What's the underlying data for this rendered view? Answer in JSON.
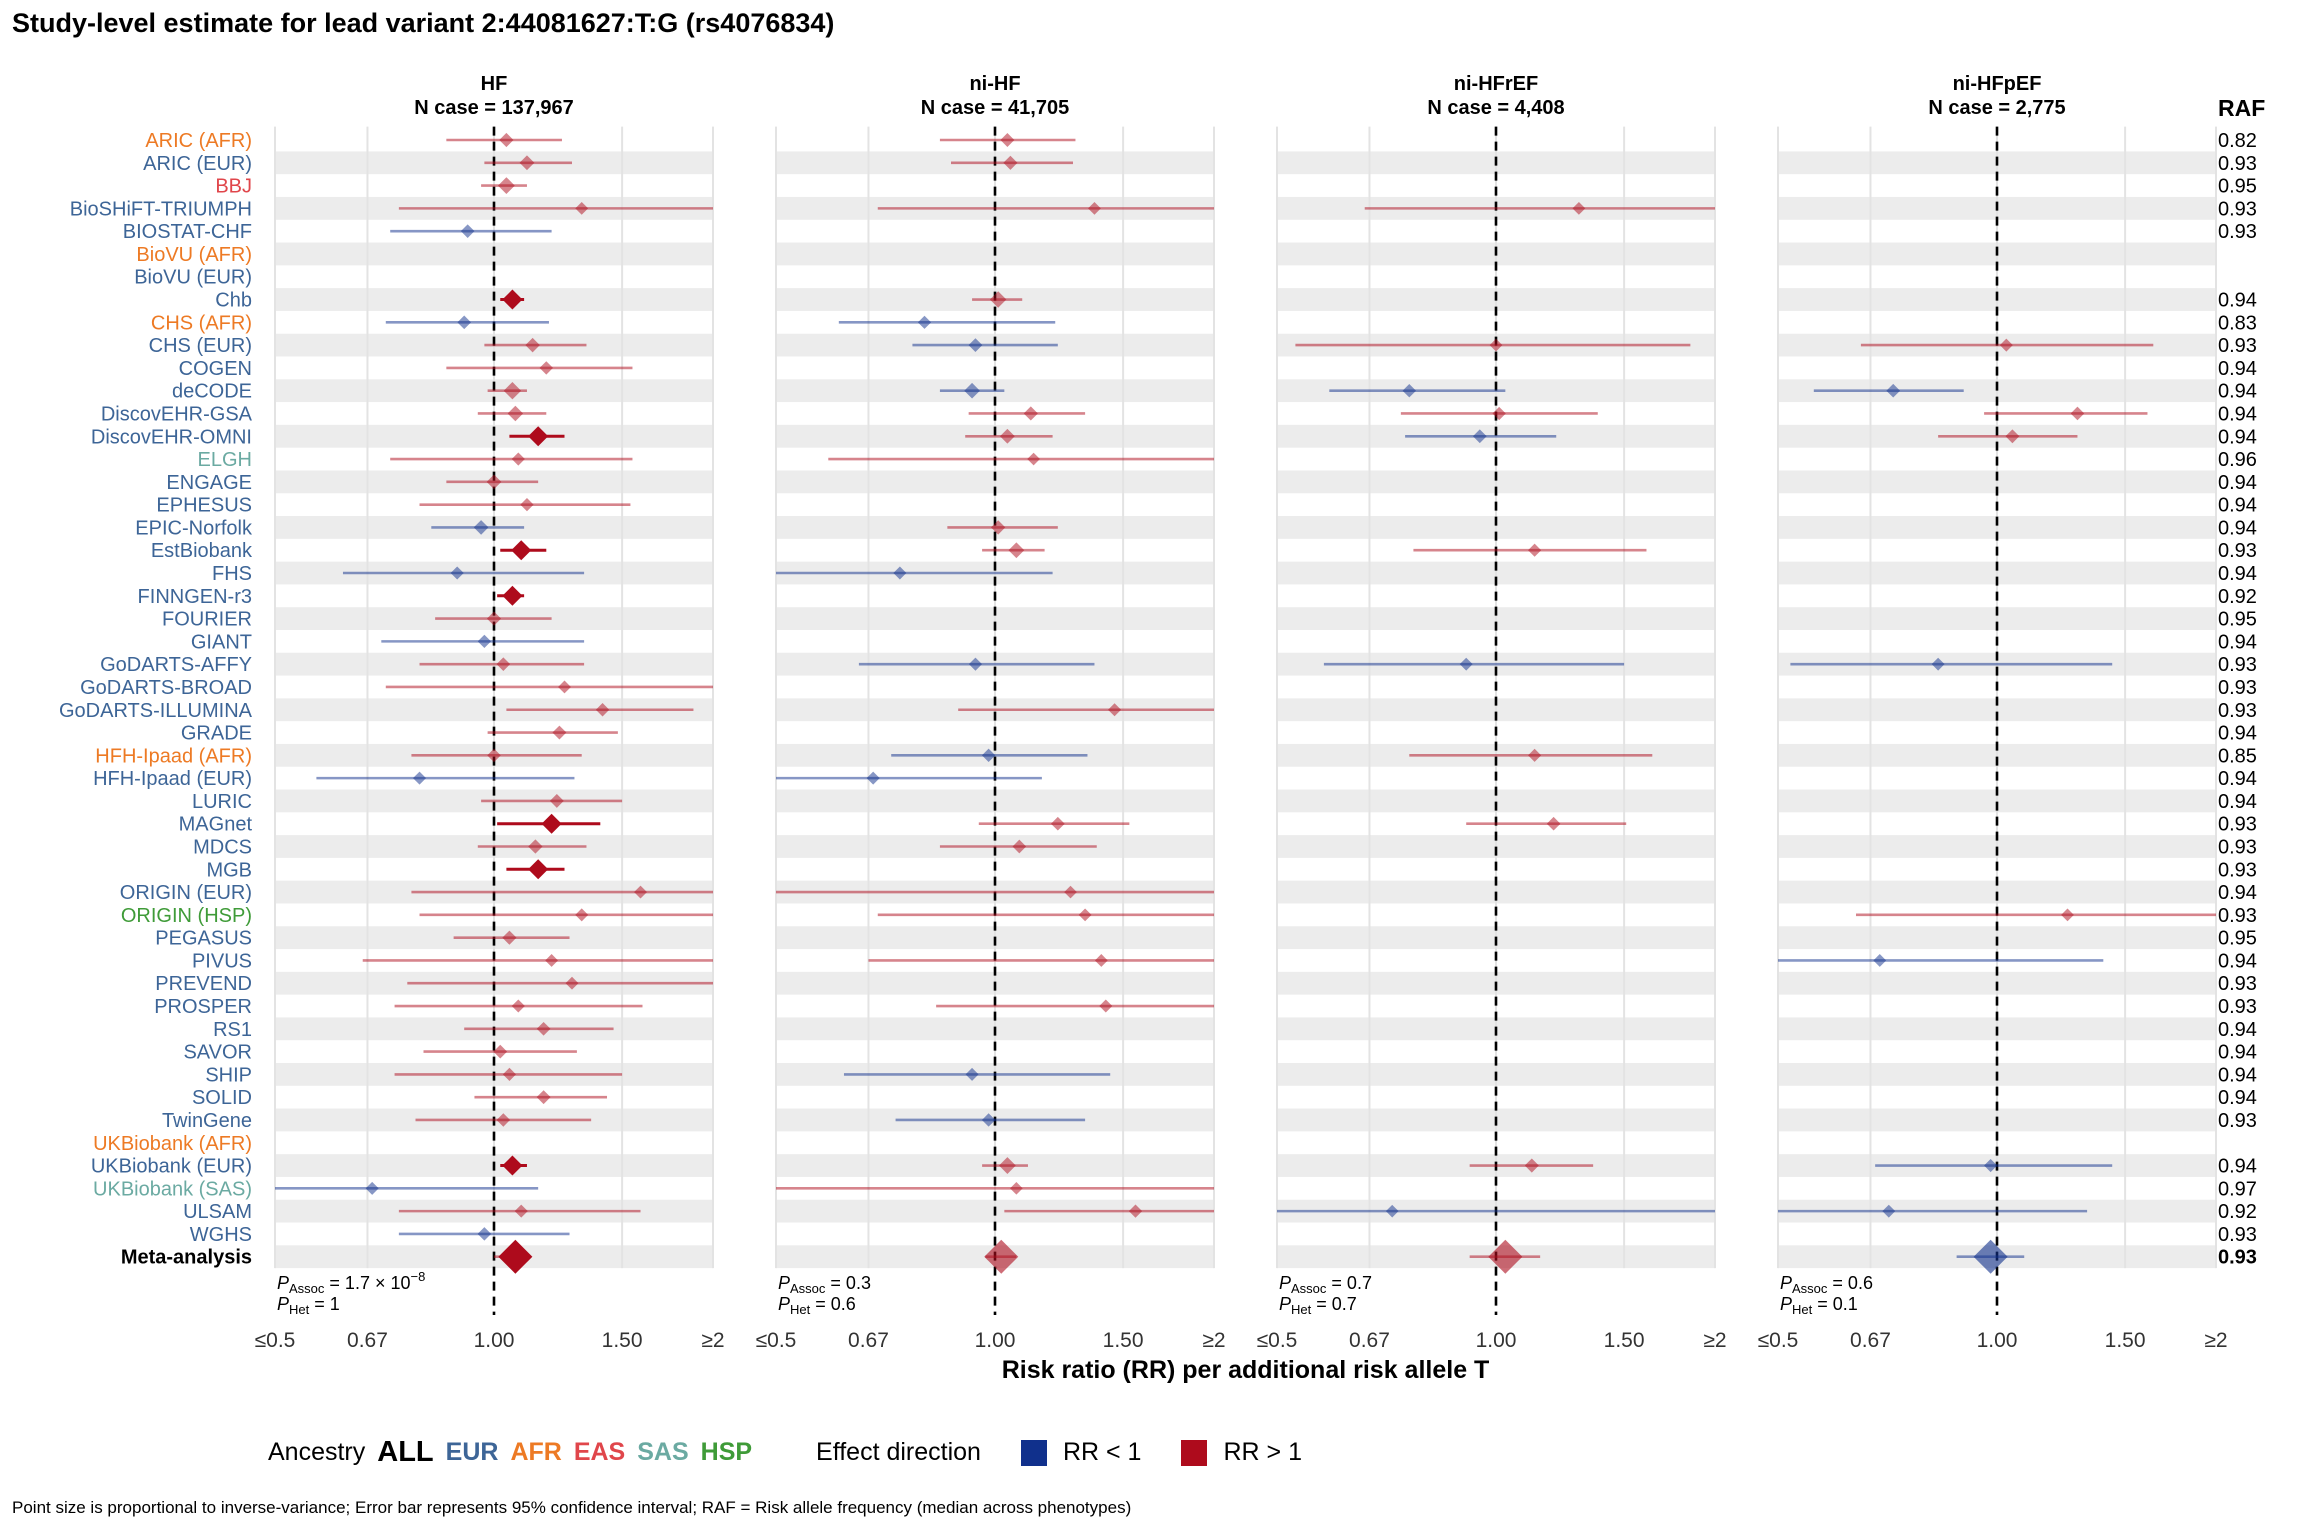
{
  "title": "Study-level estimate for lead variant 2:44081627:T:G (rs4076834)",
  "footnote": "Point size is proportional to inverse-variance; Error bar represents 95% confidence interval; RAF = Risk allele frequency (median across phenotypes)",
  "raf_header": "RAF",
  "colors": {
    "EUR": "#3d6597",
    "AFR": "#ed7a24",
    "EAS": "#e0464b",
    "SAS": "#6baaa2",
    "HSP": "#3f9b38",
    "ALL": "#000000",
    "rr_lt_1": "#10308c",
    "rr_gt_1": "#ae0b1c",
    "band": "#ececec"
  },
  "legend": {
    "ancestry_label": "Ancestry",
    "ancestries": [
      "ALL",
      "EUR",
      "AFR",
      "EAS",
      "SAS",
      "HSP"
    ],
    "effect_label": "Effect direction",
    "rr_lt_1": "RR < 1",
    "rr_gt_1": "RR > 1"
  },
  "chart_data": {
    "type": "forest",
    "x_axis_label": "Risk ratio (RR) per additional risk allele T",
    "x_scale": "log",
    "xlim": [
      0.5,
      2
    ],
    "x_ticks": [
      0.5,
      0.67,
      1.0,
      1.5,
      2
    ],
    "x_tick_labels": [
      "≤0.5",
      "0.67",
      "1.00",
      "1.50",
      "≥2"
    ],
    "reference_line": 1,
    "studies": [
      {
        "name": "ARIC (AFR)",
        "ancestry": "AFR",
        "raf": "0.82"
      },
      {
        "name": "ARIC (EUR)",
        "ancestry": "EUR",
        "raf": "0.93"
      },
      {
        "name": "BBJ",
        "ancestry": "EAS",
        "raf": "0.95"
      },
      {
        "name": "BioSHiFT-TRIUMPH",
        "ancestry": "EUR",
        "raf": "0.93"
      },
      {
        "name": "BIOSTAT-CHF",
        "ancestry": "EUR",
        "raf": "0.93"
      },
      {
        "name": "BioVU (AFR)",
        "ancestry": "AFR",
        "raf": ""
      },
      {
        "name": "BioVU (EUR)",
        "ancestry": "EUR",
        "raf": ""
      },
      {
        "name": "Chb",
        "ancestry": "EUR",
        "raf": "0.94"
      },
      {
        "name": "CHS (AFR)",
        "ancestry": "AFR",
        "raf": "0.83"
      },
      {
        "name": "CHS (EUR)",
        "ancestry": "EUR",
        "raf": "0.93"
      },
      {
        "name": "COGEN",
        "ancestry": "EUR",
        "raf": "0.94"
      },
      {
        "name": "deCODE",
        "ancestry": "EUR",
        "raf": "0.94"
      },
      {
        "name": "DiscovEHR-GSA",
        "ancestry": "EUR",
        "raf": "0.94"
      },
      {
        "name": "DiscovEHR-OMNI",
        "ancestry": "EUR",
        "raf": "0.94"
      },
      {
        "name": "ELGH",
        "ancestry": "SAS",
        "raf": "0.96"
      },
      {
        "name": "ENGAGE",
        "ancestry": "EUR",
        "raf": "0.94"
      },
      {
        "name": "EPHESUS",
        "ancestry": "EUR",
        "raf": "0.94"
      },
      {
        "name": "EPIC-Norfolk",
        "ancestry": "EUR",
        "raf": "0.94"
      },
      {
        "name": "EstBiobank",
        "ancestry": "EUR",
        "raf": "0.93"
      },
      {
        "name": "FHS",
        "ancestry": "EUR",
        "raf": "0.94"
      },
      {
        "name": "FINNGEN-r3",
        "ancestry": "EUR",
        "raf": "0.92"
      },
      {
        "name": "FOURIER",
        "ancestry": "EUR",
        "raf": "0.95"
      },
      {
        "name": "GIANT",
        "ancestry": "EUR",
        "raf": "0.94"
      },
      {
        "name": "GoDARTS-AFFY",
        "ancestry": "EUR",
        "raf": "0.93"
      },
      {
        "name": "GoDARTS-BROAD",
        "ancestry": "EUR",
        "raf": "0.93"
      },
      {
        "name": "GoDARTS-ILLUMINA",
        "ancestry": "EUR",
        "raf": "0.93"
      },
      {
        "name": "GRADE",
        "ancestry": "EUR",
        "raf": "0.94"
      },
      {
        "name": "HFH-Ipaad (AFR)",
        "ancestry": "AFR",
        "raf": "0.85"
      },
      {
        "name": "HFH-Ipaad (EUR)",
        "ancestry": "EUR",
        "raf": "0.94"
      },
      {
        "name": "LURIC",
        "ancestry": "EUR",
        "raf": "0.94"
      },
      {
        "name": "MAGnet",
        "ancestry": "EUR",
        "raf": "0.93"
      },
      {
        "name": "MDCS",
        "ancestry": "EUR",
        "raf": "0.93"
      },
      {
        "name": "MGB",
        "ancestry": "EUR",
        "raf": "0.93"
      },
      {
        "name": "ORIGIN (EUR)",
        "ancestry": "EUR",
        "raf": "0.94"
      },
      {
        "name": "ORIGIN (HSP)",
        "ancestry": "HSP",
        "raf": "0.93"
      },
      {
        "name": "PEGASUS",
        "ancestry": "EUR",
        "raf": "0.95"
      },
      {
        "name": "PIVUS",
        "ancestry": "EUR",
        "raf": "0.94"
      },
      {
        "name": "PREVEND",
        "ancestry": "EUR",
        "raf": "0.93"
      },
      {
        "name": "PROSPER",
        "ancestry": "EUR",
        "raf": "0.93"
      },
      {
        "name": "RS1",
        "ancestry": "EUR",
        "raf": "0.94"
      },
      {
        "name": "SAVOR",
        "ancestry": "EUR",
        "raf": "0.94"
      },
      {
        "name": "SHIP",
        "ancestry": "EUR",
        "raf": "0.94"
      },
      {
        "name": "SOLID",
        "ancestry": "EUR",
        "raf": "0.94"
      },
      {
        "name": "TwinGene",
        "ancestry": "EUR",
        "raf": "0.93"
      },
      {
        "name": "UKBiobank (AFR)",
        "ancestry": "AFR",
        "raf": ""
      },
      {
        "name": "UKBiobank (EUR)",
        "ancestry": "EUR",
        "raf": "0.94"
      },
      {
        "name": "UKBiobank (SAS)",
        "ancestry": "SAS",
        "raf": "0.97"
      },
      {
        "name": "ULSAM",
        "ancestry": "EUR",
        "raf": "0.92"
      },
      {
        "name": "WGHS",
        "ancestry": "EUR",
        "raf": "0.93"
      },
      {
        "name": "Meta-analysis",
        "ancestry": "ALL",
        "raf": "0.93"
      }
    ],
    "panels": [
      {
        "name": "HF",
        "n_case": "N case = 137,967",
        "p_assoc": "1.7 × 10",
        "p_assoc_exp": "−8",
        "p_het": "1",
        "estimates": [
          [
            1.04,
            0.86,
            1.24
          ],
          [
            1.11,
            0.97,
            1.28
          ],
          [
            1.04,
            0.96,
            1.11
          ],
          [
            1.32,
            0.74,
            2.0
          ],
          [
            0.92,
            0.72,
            1.2
          ],
          null,
          null,
          [
            1.06,
            1.02,
            1.1
          ],
          [
            0.91,
            0.71,
            1.19
          ],
          [
            1.13,
            0.97,
            1.34
          ],
          [
            1.18,
            0.86,
            1.55
          ],
          [
            1.06,
            0.98,
            1.11
          ],
          [
            1.07,
            0.95,
            1.18
          ],
          [
            1.15,
            1.05,
            1.25
          ],
          [
            1.08,
            0.72,
            1.55
          ],
          [
            1.0,
            0.86,
            1.15
          ],
          [
            1.11,
            0.79,
            1.54
          ],
          [
            0.96,
            0.82,
            1.1
          ],
          [
            1.09,
            1.02,
            1.18
          ],
          [
            0.89,
            0.62,
            1.33
          ],
          [
            1.06,
            1.01,
            1.1
          ],
          [
            1.0,
            0.83,
            1.2
          ],
          [
            0.97,
            0.7,
            1.33
          ],
          [
            1.03,
            0.79,
            1.33
          ],
          [
            1.25,
            0.71,
            2.0
          ],
          [
            1.41,
            1.04,
            1.88
          ],
          [
            1.23,
            0.98,
            1.48
          ],
          [
            1.0,
            0.77,
            1.32
          ],
          [
            0.79,
            0.57,
            1.29
          ],
          [
            1.22,
            0.96,
            1.5
          ],
          [
            1.2,
            1.01,
            1.4
          ],
          [
            1.14,
            0.95,
            1.34
          ],
          [
            1.15,
            1.04,
            1.25
          ],
          [
            1.59,
            0.77,
            2.0
          ],
          [
            1.32,
            0.79,
            2.0
          ],
          [
            1.05,
            0.88,
            1.27
          ],
          [
            1.2,
            0.66,
            2.0
          ],
          [
            1.28,
            0.76,
            2.0
          ],
          [
            1.08,
            0.73,
            1.6
          ],
          [
            1.17,
            0.91,
            1.46
          ],
          [
            1.02,
            0.8,
            1.3
          ],
          [
            1.05,
            0.73,
            1.5
          ],
          [
            1.17,
            0.94,
            1.43
          ],
          [
            1.03,
            0.78,
            1.36
          ],
          null,
          [
            1.06,
            1.02,
            1.11
          ],
          [
            0.68,
            0.5,
            1.15
          ],
          [
            1.09,
            0.74,
            1.59
          ],
          [
            0.97,
            0.74,
            1.27
          ],
          [
            1.07,
            1.0,
            1.12
          ]
        ]
      },
      {
        "name": "ni-HF",
        "n_case": "N case = 41,705",
        "p_assoc": "0.3",
        "p_assoc_exp": "",
        "p_het": "0.6",
        "estimates": [
          [
            1.04,
            0.84,
            1.29
          ],
          [
            1.05,
            0.87,
            1.28
          ],
          null,
          [
            1.37,
            0.69,
            2.0
          ],
          null,
          null,
          null,
          [
            1.01,
            0.93,
            1.09
          ],
          [
            0.8,
            0.61,
            1.21
          ],
          [
            0.94,
            0.77,
            1.22
          ],
          null,
          [
            0.93,
            0.84,
            1.03
          ],
          [
            1.12,
            0.92,
            1.33
          ],
          [
            1.04,
            0.91,
            1.2
          ],
          [
            1.13,
            0.59,
            2.0
          ],
          null,
          null,
          [
            1.01,
            0.86,
            1.22
          ],
          [
            1.07,
            0.96,
            1.17
          ],
          [
            0.74,
            0.5,
            1.2
          ],
          null,
          null,
          null,
          [
            0.94,
            0.65,
            1.37
          ],
          null,
          [
            1.46,
            0.89,
            2.0
          ],
          null,
          [
            0.98,
            0.72,
            1.34
          ],
          [
            0.68,
            0.5,
            1.16
          ],
          null,
          [
            1.22,
            0.95,
            1.53
          ],
          [
            1.08,
            0.84,
            1.38
          ],
          null,
          [
            1.27,
            0.5,
            2.0
          ],
          [
            1.33,
            0.69,
            2.0
          ],
          null,
          [
            1.4,
            0.67,
            2.0
          ],
          null,
          [
            1.42,
            0.83,
            2.0
          ],
          null,
          null,
          [
            0.93,
            0.62,
            1.44
          ],
          null,
          [
            0.98,
            0.73,
            1.33
          ],
          null,
          [
            1.04,
            0.96,
            1.11
          ],
          [
            1.07,
            0.5,
            2.0
          ],
          [
            1.56,
            1.03,
            2.0
          ],
          null,
          [
            1.02,
            0.97,
            1.07
          ]
        ]
      },
      {
        "name": "ni-HFrEF",
        "n_case": "N case = 4,408",
        "p_assoc": "0.7",
        "p_assoc_exp": "",
        "p_het": "0.7",
        "estimates": [
          null,
          null,
          null,
          [
            1.3,
            0.66,
            2.0
          ],
          null,
          null,
          null,
          null,
          null,
          [
            1.0,
            0.53,
            1.85
          ],
          null,
          [
            0.76,
            0.59,
            1.03
          ],
          [
            1.01,
            0.74,
            1.38
          ],
          [
            0.95,
            0.75,
            1.21
          ],
          null,
          null,
          null,
          null,
          [
            1.13,
            0.77,
            1.61
          ],
          null,
          null,
          null,
          null,
          [
            0.91,
            0.58,
            1.5
          ],
          null,
          null,
          null,
          [
            1.13,
            0.76,
            1.64
          ],
          null,
          null,
          [
            1.2,
            0.91,
            1.51
          ],
          null,
          null,
          null,
          null,
          null,
          null,
          null,
          null,
          null,
          null,
          null,
          null,
          null,
          null,
          [
            1.12,
            0.92,
            1.36
          ],
          null,
          [
            0.72,
            0.5,
            2.0
          ],
          null,
          [
            1.03,
            0.92,
            1.15
          ]
        ]
      },
      {
        "name": "ni-HFpEF",
        "n_case": "N case = 2,775",
        "p_assoc": "0.6",
        "p_assoc_exp": "",
        "p_het": "0.1",
        "estimates": [
          null,
          null,
          null,
          null,
          null,
          null,
          null,
          null,
          null,
          [
            1.03,
            0.65,
            1.64
          ],
          null,
          [
            0.72,
            0.56,
            0.9
          ],
          [
            1.29,
            0.96,
            1.61
          ],
          [
            1.05,
            0.83,
            1.29
          ],
          null,
          null,
          null,
          null,
          null,
          null,
          null,
          null,
          null,
          [
            0.83,
            0.52,
            1.44
          ],
          null,
          null,
          null,
          null,
          null,
          null,
          null,
          null,
          null,
          null,
          [
            1.25,
            0.64,
            2.0
          ],
          null,
          [
            0.69,
            0.5,
            1.4
          ],
          null,
          null,
          null,
          null,
          null,
          null,
          null,
          null,
          [
            0.98,
            0.68,
            1.44
          ],
          null,
          [
            0.71,
            0.5,
            1.33
          ],
          null,
          [
            0.98,
            0.88,
            1.09
          ]
        ]
      }
    ]
  }
}
